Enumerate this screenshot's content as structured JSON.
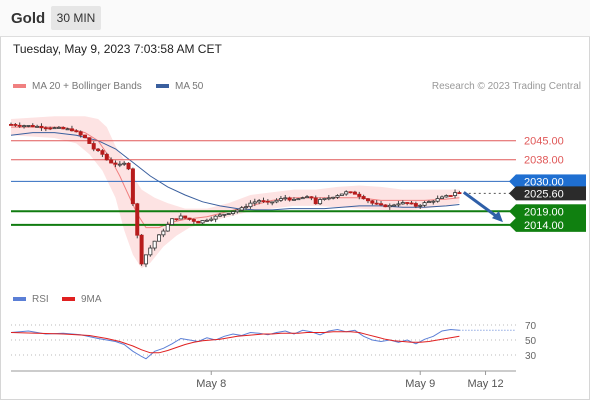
{
  "header": {
    "symbol": "Gold",
    "timeframe": "30 MIN"
  },
  "timestamp": "Tuesday, May 9, 2023 7:03:58 AM CET",
  "legend": {
    "ma20": {
      "label": "MA 20 + Bollinger Bands",
      "color": "#f08080"
    },
    "ma50": {
      "label": "MA 50",
      "color": "#3a5f9e"
    }
  },
  "copyright": "Research © 2023 Trading Central",
  "rsi_legend": {
    "rsi": {
      "label": "RSI",
      "color": "#5b7fd6"
    },
    "ma9": {
      "label": "9MA",
      "color": "#e02020"
    }
  },
  "chart_data": [
    {
      "type": "candlestick",
      "ylim": [
        1990,
        2060
      ],
      "levels": [
        {
          "label": "2045.00",
          "value": 2045.0,
          "kind": "resistance",
          "color": "#e05858"
        },
        {
          "label": "2038.00",
          "value": 2038.0,
          "kind": "resistance",
          "color": "#e05858"
        },
        {
          "label": "2030.00",
          "value": 2030.0,
          "kind": "pivot",
          "color": "#2f6bbf"
        },
        {
          "label": "2025.60",
          "value": 2025.6,
          "kind": "last-price",
          "color": "#222222"
        },
        {
          "label": "2019.00",
          "value": 2019.0,
          "kind": "support",
          "color": "#107c10"
        },
        {
          "label": "2014.00",
          "value": 2014.0,
          "kind": "support",
          "color": "#107c10"
        }
      ],
      "x_tick_labels": [
        "May 8",
        "May 9",
        "May 12"
      ],
      "close_path": [
        [
          0,
          2051
        ],
        [
          8,
          2050
        ],
        [
          14,
          2049
        ],
        [
          17,
          2046
        ],
        [
          19,
          2042
        ],
        [
          21,
          2040
        ],
        [
          22,
          2038
        ],
        [
          23,
          2037
        ],
        [
          25,
          2036
        ],
        [
          26,
          2036.5
        ],
        [
          27,
          2035
        ],
        [
          28,
          2022
        ],
        [
          29,
          2010
        ],
        [
          30,
          2000
        ],
        [
          31,
          2003
        ],
        [
          33,
          2008
        ],
        [
          35,
          2012
        ],
        [
          37,
          2016
        ],
        [
          39,
          2017
        ],
        [
          41,
          2016
        ],
        [
          43,
          2015
        ],
        [
          45,
          2016
        ],
        [
          47,
          2017
        ],
        [
          49,
          2018
        ],
        [
          51,
          2019
        ],
        [
          53,
          2020
        ],
        [
          55,
          2022
        ],
        [
          57,
          2023
        ],
        [
          59,
          2022
        ],
        [
          61,
          2023
        ],
        [
          63,
          2024
        ],
        [
          65,
          2023
        ],
        [
          67,
          2024
        ],
        [
          69,
          2024
        ],
        [
          70,
          2022
        ],
        [
          71,
          2023
        ],
        [
          73,
          2024
        ],
        [
          75,
          2025
        ],
        [
          77,
          2026
        ],
        [
          79,
          2025.5
        ],
        [
          81,
          2024
        ],
        [
          83,
          2022
        ],
        [
          85,
          2021
        ],
        [
          87,
          2021
        ],
        [
          89,
          2022
        ],
        [
          91,
          2022
        ],
        [
          93,
          2021
        ],
        [
          95,
          2022
        ],
        [
          97,
          2023
        ],
        [
          99,
          2024
        ],
        [
          101,
          2025
        ],
        [
          102,
          2026
        ],
        [
          103,
          2025.6
        ]
      ],
      "bollinger": {
        "upper": [
          [
            0,
            2053
          ],
          [
            10,
            2054
          ],
          [
            17,
            2054
          ],
          [
            20,
            2053
          ],
          [
            22,
            2050
          ],
          [
            24,
            2043
          ],
          [
            26,
            2038
          ],
          [
            28,
            2032
          ],
          [
            30,
            2027
          ],
          [
            33,
            2024
          ],
          [
            36,
            2022
          ],
          [
            40,
            2020
          ],
          [
            45,
            2020
          ],
          [
            50,
            2022
          ],
          [
            55,
            2025
          ],
          [
            60,
            2026
          ],
          [
            65,
            2027
          ],
          [
            70,
            2027
          ],
          [
            75,
            2028
          ],
          [
            80,
            2028.5
          ],
          [
            85,
            2028
          ],
          [
            90,
            2027
          ],
          [
            95,
            2027
          ],
          [
            100,
            2027
          ],
          [
            103,
            2027
          ]
        ],
        "lower": [
          [
            0,
            2047
          ],
          [
            10,
            2046
          ],
          [
            15,
            2044
          ],
          [
            18,
            2040
          ],
          [
            21,
            2034
          ],
          [
            24,
            2024
          ],
          [
            26,
            2012
          ],
          [
            28,
            2003
          ],
          [
            30,
            1998
          ],
          [
            32,
            2000
          ],
          [
            35,
            2006
          ],
          [
            38,
            2010
          ],
          [
            41,
            2013
          ],
          [
            45,
            2015
          ],
          [
            50,
            2017
          ],
          [
            55,
            2019
          ],
          [
            60,
            2020
          ],
          [
            65,
            2021
          ],
          [
            70,
            2021
          ],
          [
            75,
            2020.5
          ],
          [
            80,
            2020
          ],
          [
            85,
            2019.5
          ],
          [
            90,
            2019
          ],
          [
            95,
            2020
          ],
          [
            100,
            2021
          ],
          [
            103,
            2022
          ]
        ],
        "middle": [
          [
            0,
            2050
          ],
          [
            12,
            2050
          ],
          [
            17,
            2048
          ],
          [
            20,
            2045
          ],
          [
            23,
            2038
          ],
          [
            25,
            2032
          ],
          [
            27,
            2025
          ],
          [
            29,
            2018
          ],
          [
            31,
            2013
          ],
          [
            34,
            2013
          ],
          [
            37,
            2015
          ],
          [
            40,
            2016
          ],
          [
            45,
            2017
          ],
          [
            50,
            2019
          ],
          [
            55,
            2021
          ],
          [
            60,
            2023
          ],
          [
            65,
            2024
          ],
          [
            70,
            2024
          ],
          [
            75,
            2024
          ],
          [
            80,
            2024
          ],
          [
            85,
            2023
          ],
          [
            90,
            2023
          ],
          [
            95,
            2023
          ],
          [
            100,
            2023.5
          ],
          [
            103,
            2024
          ]
        ]
      },
      "ma50": [
        [
          0,
          2047
        ],
        [
          5,
          2048
        ],
        [
          10,
          2048
        ],
        [
          15,
          2047
        ],
        [
          20,
          2045
        ],
        [
          24,
          2042
        ],
        [
          28,
          2037
        ],
        [
          32,
          2032
        ],
        [
          36,
          2028
        ],
        [
          40,
          2025
        ],
        [
          44,
          2022.5
        ],
        [
          48,
          2021
        ],
        [
          52,
          2020
        ],
        [
          56,
          2019.5
        ],
        [
          60,
          2019.5
        ],
        [
          64,
          2020
        ],
        [
          68,
          2020
        ],
        [
          72,
          2020
        ],
        [
          76,
          2020.5
        ],
        [
          80,
          2021
        ],
        [
          85,
          2021
        ],
        [
          90,
          2020.5
        ],
        [
          95,
          2020.5
        ],
        [
          100,
          2021
        ],
        [
          103,
          2021.5
        ]
      ],
      "forecast_arrow": {
        "from": [
          104,
          2026
        ],
        "to": [
          113,
          2015
        ],
        "color": "#2f5fa8"
      }
    },
    {
      "type": "line",
      "title": "RSI",
      "ylim": [
        10,
        90
      ],
      "y_ticks": [
        70,
        50,
        30
      ],
      "series": [
        {
          "name": "RSI",
          "color": "#5b7fd6",
          "values": [
            [
              0,
              60
            ],
            [
              4,
              62
            ],
            [
              8,
              58
            ],
            [
              12,
              59
            ],
            [
              16,
              57
            ],
            [
              20,
              52
            ],
            [
              24,
              48
            ],
            [
              26,
              44
            ],
            [
              28,
              35
            ],
            [
              30,
              28
            ],
            [
              31,
              25
            ],
            [
              33,
              35
            ],
            [
              35,
              39
            ],
            [
              37,
              45
            ],
            [
              39,
              52
            ],
            [
              41,
              50
            ],
            [
              43,
              48
            ],
            [
              45,
              53
            ],
            [
              47,
              50
            ],
            [
              49,
              55
            ],
            [
              51,
              58
            ],
            [
              53,
              56
            ],
            [
              55,
              60
            ],
            [
              57,
              59
            ],
            [
              59,
              57
            ],
            [
              61,
              60
            ],
            [
              63,
              62
            ],
            [
              65,
              58
            ],
            [
              67,
              63
            ],
            [
              69,
              61
            ],
            [
              71,
              57
            ],
            [
              73,
              62
            ],
            [
              75,
              64
            ],
            [
              77,
              61
            ],
            [
              79,
              63
            ],
            [
              81,
              55
            ],
            [
              83,
              50
            ],
            [
              85,
              48
            ],
            [
              87,
              50
            ],
            [
              89,
              47
            ],
            [
              91,
              50
            ],
            [
              93,
              45
            ],
            [
              95,
              51
            ],
            [
              97,
              55
            ],
            [
              99,
              62
            ],
            [
              101,
              64
            ],
            [
              103,
              63
            ]
          ]
        },
        {
          "name": "9MA",
          "color": "#e02020",
          "values": [
            [
              0,
              60
            ],
            [
              6,
              59
            ],
            [
              12,
              58
            ],
            [
              18,
              56
            ],
            [
              22,
              52
            ],
            [
              25,
              48
            ],
            [
              28,
              42
            ],
            [
              30,
              37
            ],
            [
              32,
              33
            ],
            [
              34,
              33
            ],
            [
              36,
              36
            ],
            [
              38,
              40
            ],
            [
              40,
              44
            ],
            [
              42,
              47
            ],
            [
              44,
              49
            ],
            [
              46,
              50
            ],
            [
              48,
              51
            ],
            [
              50,
              53
            ],
            [
              52,
              55
            ],
            [
              54,
              56
            ],
            [
              56,
              57
            ],
            [
              58,
              58
            ],
            [
              60,
              58
            ],
            [
              62,
              59
            ],
            [
              64,
              59
            ],
            [
              66,
              59
            ],
            [
              68,
              60
            ],
            [
              70,
              60
            ],
            [
              72,
              60
            ],
            [
              74,
              61
            ],
            [
              76,
              61
            ],
            [
              78,
              61
            ],
            [
              80,
              60
            ],
            [
              82,
              57
            ],
            [
              84,
              54
            ],
            [
              86,
              51
            ],
            [
              88,
              49
            ],
            [
              90,
              48
            ],
            [
              92,
              47
            ],
            [
              94,
              47
            ],
            [
              96,
              48
            ],
            [
              98,
              50
            ],
            [
              100,
              52
            ],
            [
              102,
              54
            ],
            [
              103,
              55
            ]
          ]
        }
      ]
    }
  ]
}
